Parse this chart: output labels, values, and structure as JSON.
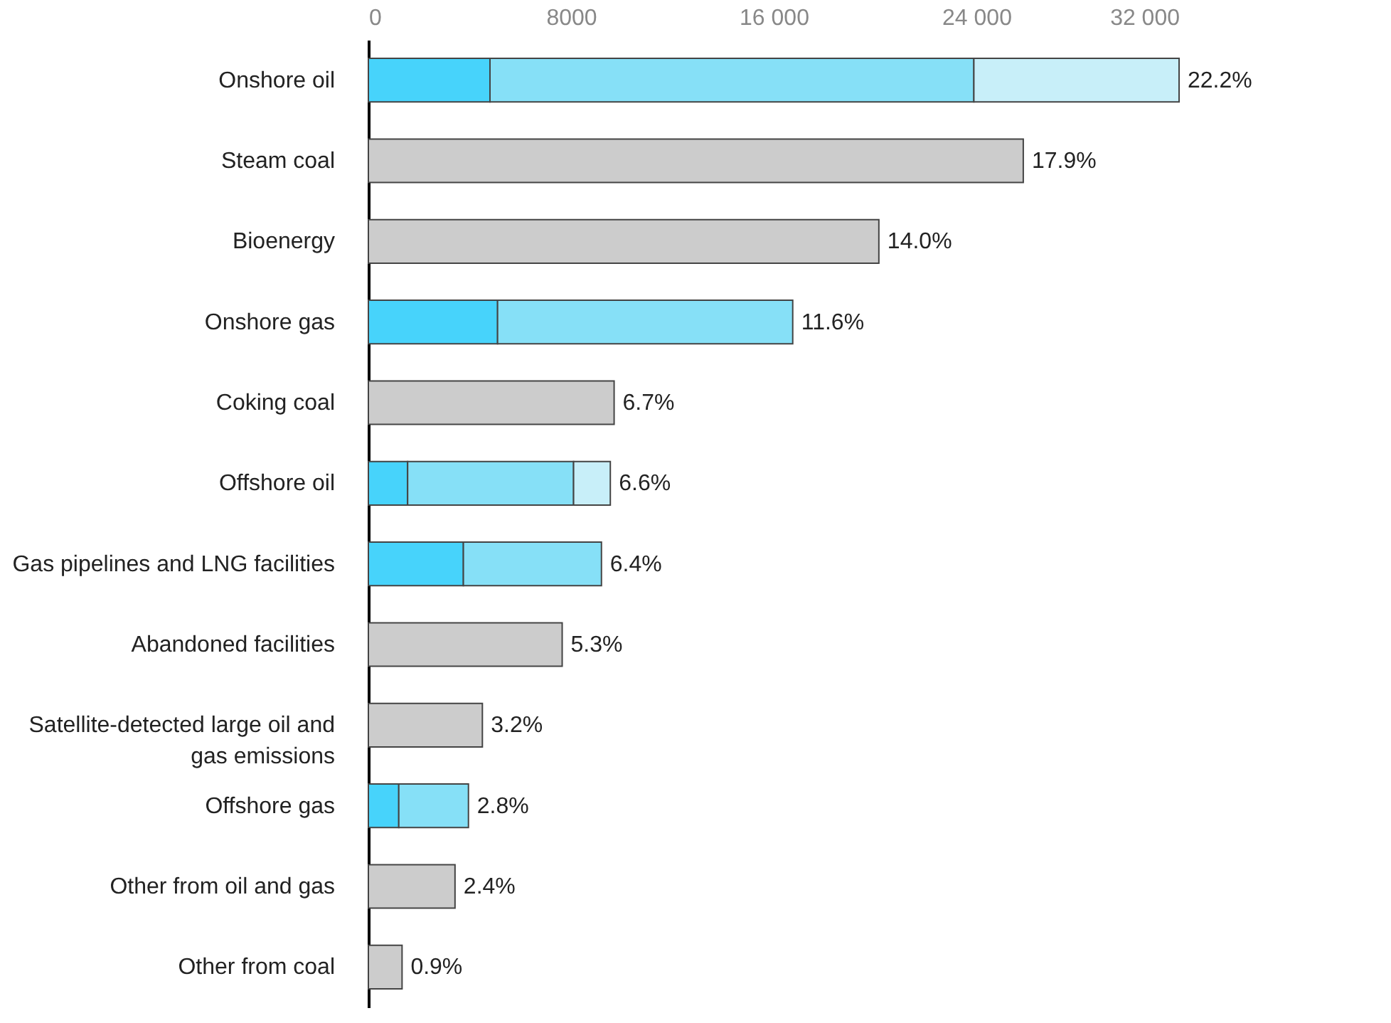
{
  "chart_data": {
    "type": "bar",
    "orientation": "horizontal",
    "stacked": true,
    "categories": [
      "Onshore oil",
      "Steam coal",
      "Bioenergy",
      "Onshore gas",
      "Coking coal",
      "Offshore oil",
      "Gas pipelines and LNG facilities",
      "Abandoned facilities",
      "Satellite-detected large oil and gas emissions",
      "Offshore gas",
      "Other from oil and gas",
      "Other from coal"
    ],
    "series": [
      {
        "color": "#47d3fb",
        "values": [
          4800,
          null,
          null,
          5100,
          null,
          1550,
          3750,
          null,
          null,
          1200,
          null,
          null
        ]
      },
      {
        "color": "#86e0f7",
        "values": [
          19100,
          null,
          null,
          11650,
          null,
          6550,
          5450,
          null,
          null,
          2750,
          null,
          null
        ]
      },
      {
        "color": "#c8eff9",
        "values": [
          8100,
          null,
          null,
          null,
          null,
          1450,
          null,
          null,
          null,
          null,
          null,
          null
        ]
      },
      {
        "color": "#cccccc",
        "values": [
          null,
          25850,
          20150,
          null,
          9700,
          null,
          null,
          7650,
          4500,
          null,
          3420,
          1330
        ]
      }
    ],
    "annotations": [
      {
        "text": "22.2%",
        "x": 32000,
        "y": "Onshore oil"
      },
      {
        "text": "17.9%",
        "x": 25850,
        "y": "Steam coal"
      },
      {
        "text": "14.0%",
        "x": 20150,
        "y": "Bioenergy"
      },
      {
        "text": "11.6%",
        "x": 16750,
        "y": "Onshore gas"
      },
      {
        "text": "6.7%",
        "x": 9700,
        "y": "Coking coal"
      },
      {
        "text": "6.6%",
        "x": 9550,
        "y": "Offshore oil"
      },
      {
        "text": "6.4%",
        "x": 9200,
        "y": "Gas pipelines and LNG facilities"
      },
      {
        "text": "5.3%",
        "x": 7650,
        "y": "Abandoned facilities"
      },
      {
        "text": "3.2%",
        "x": 4500,
        "y": "Satellite-detected large oil and gas emissions"
      },
      {
        "text": "2.8%",
        "x": 3950,
        "y": "Offshore gas"
      },
      {
        "text": "2.4%",
        "x": 3420,
        "y": "Other from oil and gas"
      },
      {
        "text": "0.9%",
        "x": 1330,
        "y": "Other from coal"
      }
    ],
    "xlim": [
      0,
      32000
    ],
    "xticks": [
      0,
      8000,
      {
        "value": 16000,
        "label": "16 000"
      },
      {
        "value": 24000,
        "label": "24 000"
      },
      {
        "value": 32000,
        "label": "32 000"
      }
    ],
    "grid": false,
    "legend": false
  }
}
